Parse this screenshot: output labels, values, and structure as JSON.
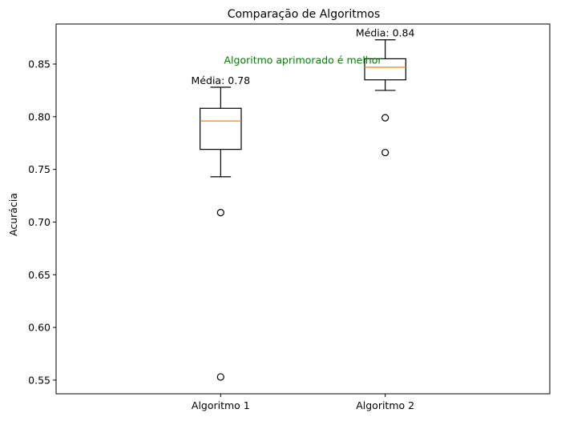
{
  "chart_data": {
    "type": "box",
    "title": "Comparação de Algoritmos",
    "xlabel": "",
    "ylabel": "Acurácia",
    "ylim": [
      0.537,
      0.888
    ],
    "yticks": [
      0.55,
      0.6,
      0.65,
      0.7,
      0.75,
      0.8,
      0.85
    ],
    "ytick_labels": [
      "0.55",
      "0.60",
      "0.65",
      "0.70",
      "0.75",
      "0.80",
      "0.85"
    ],
    "grid": false,
    "categories": [
      "Algoritmo 1",
      "Algoritmo 2"
    ],
    "boxes": [
      {
        "name": "Algoritmo 1",
        "whisker_low": 0.743,
        "q1": 0.769,
        "median": 0.796,
        "q3": 0.808,
        "whisker_high": 0.828,
        "outliers": [
          0.709,
          0.553
        ],
        "mean_label": "Média: 0.78"
      },
      {
        "name": "Algoritmo 2",
        "whisker_low": 0.825,
        "q1": 0.835,
        "median": 0.847,
        "q3": 0.855,
        "whisker_high": 0.873,
        "outliers": [
          0.799,
          0.766
        ],
        "mean_label": "Média: 0.84"
      }
    ],
    "annotations": [
      {
        "text": "Algoritmo aprimorado é melhor",
        "color": "#008000",
        "y": 0.854
      }
    ],
    "colors": {
      "box": "#000000",
      "median": "#ff7f0e",
      "annotation": "#008000"
    }
  }
}
